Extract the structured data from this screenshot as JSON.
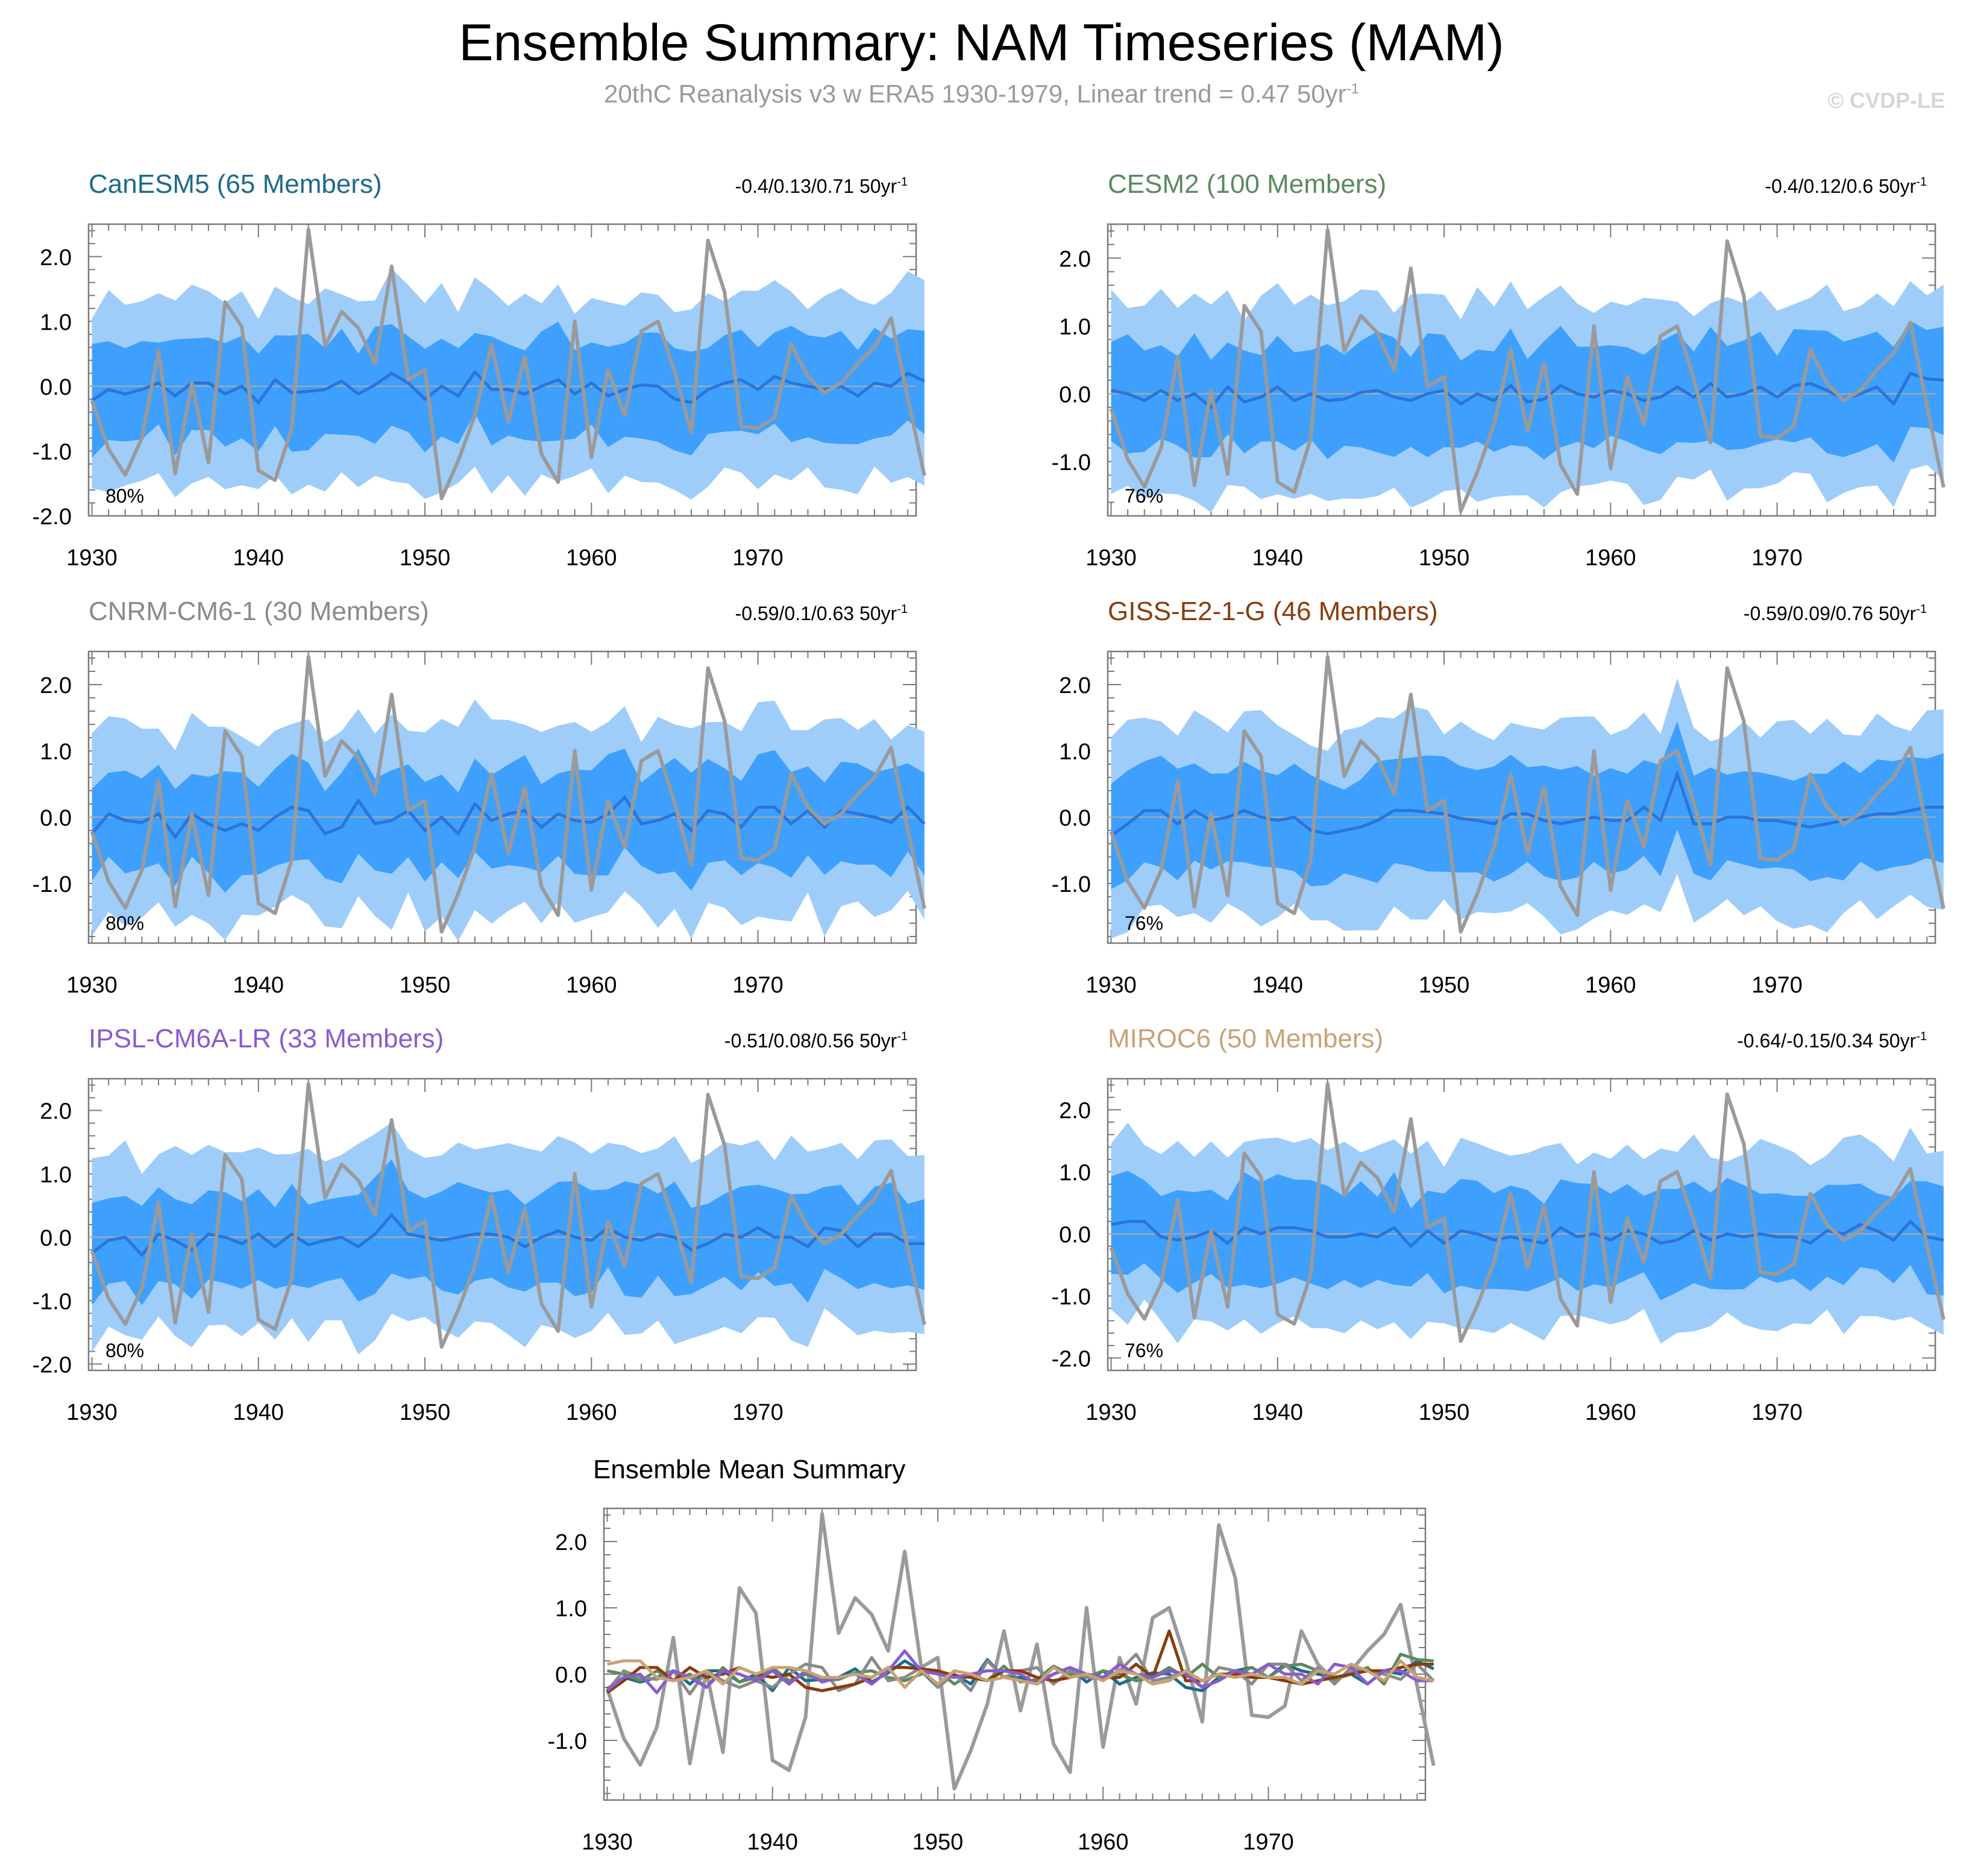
{
  "figure": {
    "title": "Ensemble Summary: NAM Timeseries (MAM)",
    "subtitle_main": "20thC Reanalysis v3 w ERA5 1930-1979, Linear trend = 0.47 50yr",
    "subtitle_sup": "-1",
    "watermark": "© CVDP-LE"
  },
  "colors": {
    "outer_band": "#9fcdfa",
    "inner_band": "#3ea0fc",
    "ens_mean_line": "#2c74d8",
    "observed_line": "#9a9a9a"
  },
  "chart_data": [
    {
      "type": "line",
      "title": "CanESM5 (65 Members)",
      "title_color": "#1e6b8a",
      "trend_label": "-0.4/0.13/0.71 50yr",
      "trend_sup": "-1",
      "percent_label": "80%",
      "ylim": [
        -2.0,
        2.5
      ],
      "yticks": [
        -2.0,
        -1.0,
        0.0,
        1.0,
        2.0
      ],
      "ytick_labels": [
        "-2.0",
        "-1.0",
        "0.0",
        "1.0",
        "2.0"
      ],
      "xticks": [
        1930,
        1940,
        1950,
        1960,
        1970
      ],
      "ens_mean": [
        -0.22,
        -0.05,
        -0.12,
        -0.05,
        0.05,
        -0.15,
        0.05,
        0.05,
        -0.12,
        0.0,
        -0.25,
        0.1,
        -0.1,
        -0.08,
        -0.05,
        0.08,
        -0.12,
        0.02,
        0.2,
        0.05,
        -0.2,
        0.0,
        -0.15,
        0.22,
        -0.05,
        -0.05,
        -0.12,
        0.0,
        0.1,
        -0.12,
        0.05,
        -0.15,
        -0.05,
        0.02,
        0.0,
        -0.2,
        -0.25,
        -0.05,
        0.05,
        0.1,
        -0.05,
        0.15,
        0.05,
        0.0,
        -0.05,
        0.0,
        -0.15,
        0.05,
        0.0,
        0.2,
        0.08
      ]
    },
    {
      "type": "line",
      "title": "CESM2 (100 Members)",
      "title_color": "#5a8a5e",
      "trend_label": "-0.4/0.12/0.6 50yr",
      "trend_sup": "-1",
      "percent_label": "76%",
      "ylim": [
        -1.8,
        2.5
      ],
      "yticks": [
        -1.0,
        0.0,
        1.0,
        2.0
      ],
      "ytick_labels": [
        "-1.0",
        "0.0",
        "1.0",
        "2.0"
      ],
      "xticks": [
        1930,
        1940,
        1950,
        1960,
        1970
      ],
      "ens_mean": [
        0.05,
        0.0,
        -0.1,
        0.05,
        -0.1,
        0.0,
        -0.2,
        0.1,
        -0.12,
        -0.05,
        0.1,
        -0.1,
        0.0,
        -0.1,
        -0.08,
        0.02,
        0.05,
        -0.05,
        -0.1,
        0.0,
        0.05,
        -0.15,
        0.0,
        -0.1,
        0.12,
        -0.12,
        -0.08,
        0.12,
        0.0,
        -0.05,
        0.05,
        0.0,
        -0.1,
        -0.05,
        0.1,
        -0.05,
        0.15,
        -0.05,
        0.0,
        0.1,
        -0.05,
        0.12,
        0.15,
        0.05,
        -0.08,
        0.0,
        0.1,
        -0.15,
        0.3,
        0.22,
        0.2
      ]
    },
    {
      "type": "line",
      "title": "CNRM-CM6-1 (30 Members)",
      "title_color": "#8a8a8a",
      "trend_label": "-0.59/0.1/0.63 50yr",
      "trend_sup": "-1",
      "percent_label": "80%",
      "ylim": [
        -1.9,
        2.5
      ],
      "yticks": [
        -1.0,
        0.0,
        1.0,
        2.0
      ],
      "ytick_labels": [
        "-1.0",
        "0.0",
        "1.0",
        "2.0"
      ],
      "xticks": [
        1930,
        1940,
        1950,
        1960,
        1970
      ],
      "ens_mean": [
        -0.25,
        0.05,
        -0.05,
        -0.08,
        0.05,
        -0.3,
        0.05,
        -0.1,
        -0.2,
        -0.1,
        -0.2,
        0.0,
        0.15,
        0.1,
        -0.25,
        -0.15,
        0.25,
        -0.1,
        -0.05,
        0.1,
        -0.2,
        0.0,
        -0.25,
        0.2,
        -0.05,
        0.05,
        0.1,
        -0.15,
        0.05,
        -0.05,
        -0.08,
        0.05,
        0.3,
        -0.1,
        -0.05,
        0.05,
        -0.2,
        0.1,
        0.05,
        -0.15,
        0.15,
        0.15,
        -0.1,
        0.1,
        -0.15,
        0.1,
        0.05,
        0.0,
        -0.08,
        0.15,
        -0.1
      ]
    },
    {
      "type": "line",
      "title": "GISS-E2-1-G (46 Members)",
      "title_color": "#8a3c0c",
      "trend_label": "-0.59/0.09/0.76 50yr",
      "trend_sup": "-1",
      "percent_label": "76%",
      "ylim": [
        -1.9,
        2.5
      ],
      "yticks": [
        -1.0,
        0.0,
        1.0,
        2.0
      ],
      "ytick_labels": [
        "-1.0",
        "0.0",
        "1.0",
        "2.0"
      ],
      "xticks": [
        1930,
        1940,
        1950,
        1960,
        1970
      ],
      "ens_mean": [
        -0.28,
        -0.1,
        0.1,
        0.1,
        -0.1,
        0.1,
        -0.05,
        0.0,
        0.1,
        0.0,
        -0.05,
        0.0,
        -0.2,
        -0.25,
        -0.2,
        -0.15,
        -0.05,
        0.1,
        0.1,
        0.08,
        0.05,
        -0.02,
        -0.05,
        -0.1,
        0.05,
        0.05,
        -0.05,
        -0.1,
        -0.05,
        0.0,
        -0.05,
        -0.05,
        0.15,
        -0.05,
        0.65,
        -0.1,
        -0.1,
        0.0,
        0.0,
        -0.05,
        -0.05,
        -0.1,
        -0.15,
        -0.1,
        -0.05,
        0.0,
        0.05,
        0.05,
        0.1,
        0.15,
        0.15
      ]
    },
    {
      "type": "line",
      "title": "IPSL-CM6A-LR (33 Members)",
      "title_color": "#8a5bd0",
      "trend_label": "-0.51/0.08/0.56 50yr",
      "trend_sup": "-1",
      "percent_label": "80%",
      "ylim": [
        -2.1,
        2.5
      ],
      "yticks": [
        -2.0,
        -1.0,
        0.0,
        1.0,
        2.0
      ],
      "ytick_labels": [
        "-2.0",
        "-1.0",
        "0.0",
        "1.0",
        "2.0"
      ],
      "xticks": [
        1930,
        1940,
        1950,
        1960,
        1970
      ],
      "ens_mean": [
        -0.25,
        -0.05,
        0.0,
        -0.28,
        0.05,
        -0.05,
        -0.2,
        0.05,
        0.0,
        -0.1,
        0.05,
        -0.15,
        0.05,
        -0.12,
        -0.05,
        0.0,
        -0.15,
        0.05,
        0.35,
        0.05,
        0.0,
        -0.05,
        0.0,
        0.05,
        0.05,
        0.0,
        -0.15,
        0.0,
        0.1,
        0.0,
        -0.05,
        0.15,
        0.0,
        -0.05,
        0.05,
        0.0,
        -0.2,
        -0.1,
        0.05,
        0.0,
        0.15,
        0.0,
        0.0,
        -0.15,
        0.15,
        0.1,
        -0.15,
        0.05,
        0.05,
        -0.1,
        -0.1
      ]
    },
    {
      "type": "line",
      "title": "MIROC6 (50 Members)",
      "title_color": "#c9a274",
      "trend_label": "-0.64/-0.15/0.34 50yr",
      "trend_sup": "-1",
      "percent_label": "76%",
      "ylim": [
        -2.2,
        2.5
      ],
      "yticks": [
        -2.0,
        -1.0,
        0.0,
        1.0,
        2.0
      ],
      "ytick_labels": [
        "-2.0",
        "-1.0",
        "0.0",
        "1.0",
        "2.0"
      ],
      "xticks": [
        1930,
        1940,
        1950,
        1960,
        1970
      ],
      "ens_mean": [
        0.15,
        0.2,
        0.2,
        -0.05,
        -0.1,
        -0.05,
        0.05,
        -0.15,
        0.1,
        0.0,
        0.1,
        0.1,
        0.05,
        -0.05,
        -0.05,
        0.0,
        -0.05,
        0.1,
        -0.2,
        0.05,
        -0.15,
        0.05,
        0.0,
        -0.1,
        -0.05,
        -0.1,
        -0.15,
        0.1,
        -0.05,
        0.0,
        -0.1,
        0.05,
        0.0,
        -0.15,
        -0.1,
        0.05,
        -0.1,
        0.0,
        -0.05,
        0.0,
        -0.05,
        -0.05,
        -0.15,
        0.05,
        0.0,
        0.15,
        0.05,
        -0.1,
        0.2,
        -0.05,
        -0.1
      ]
    },
    {
      "type": "line",
      "title": "Ensemble Mean Summary",
      "ylim": [
        -1.9,
        2.5
      ],
      "yticks": [
        -1.0,
        0.0,
        1.0,
        2.0
      ],
      "ytick_labels": [
        "-1.0",
        "0.0",
        "1.0",
        "2.0"
      ],
      "xticks": [
        1930,
        1940,
        1950,
        1960,
        1970
      ]
    }
  ],
  "observed": [
    -0.22,
    -0.97,
    -1.37,
    -0.8,
    0.55,
    -1.35,
    0.05,
    -1.18,
    1.3,
    0.92,
    -1.3,
    -1.45,
    -0.65,
    2.42,
    0.62,
    1.15,
    0.9,
    0.35,
    1.85,
    0.1,
    0.25,
    -1.73,
    -1.15,
    -0.45,
    0.65,
    -0.55,
    0.45,
    -1.05,
    -1.48,
    1.0,
    -1.1,
    0.25,
    -0.45,
    0.85,
    1.0,
    0.22,
    -0.72,
    2.25,
    1.45,
    -0.62,
    -0.65,
    -0.48,
    0.65,
    0.15,
    -0.1,
    0.05,
    0.35,
    0.6,
    1.05,
    -0.18,
    -1.38
  ]
}
